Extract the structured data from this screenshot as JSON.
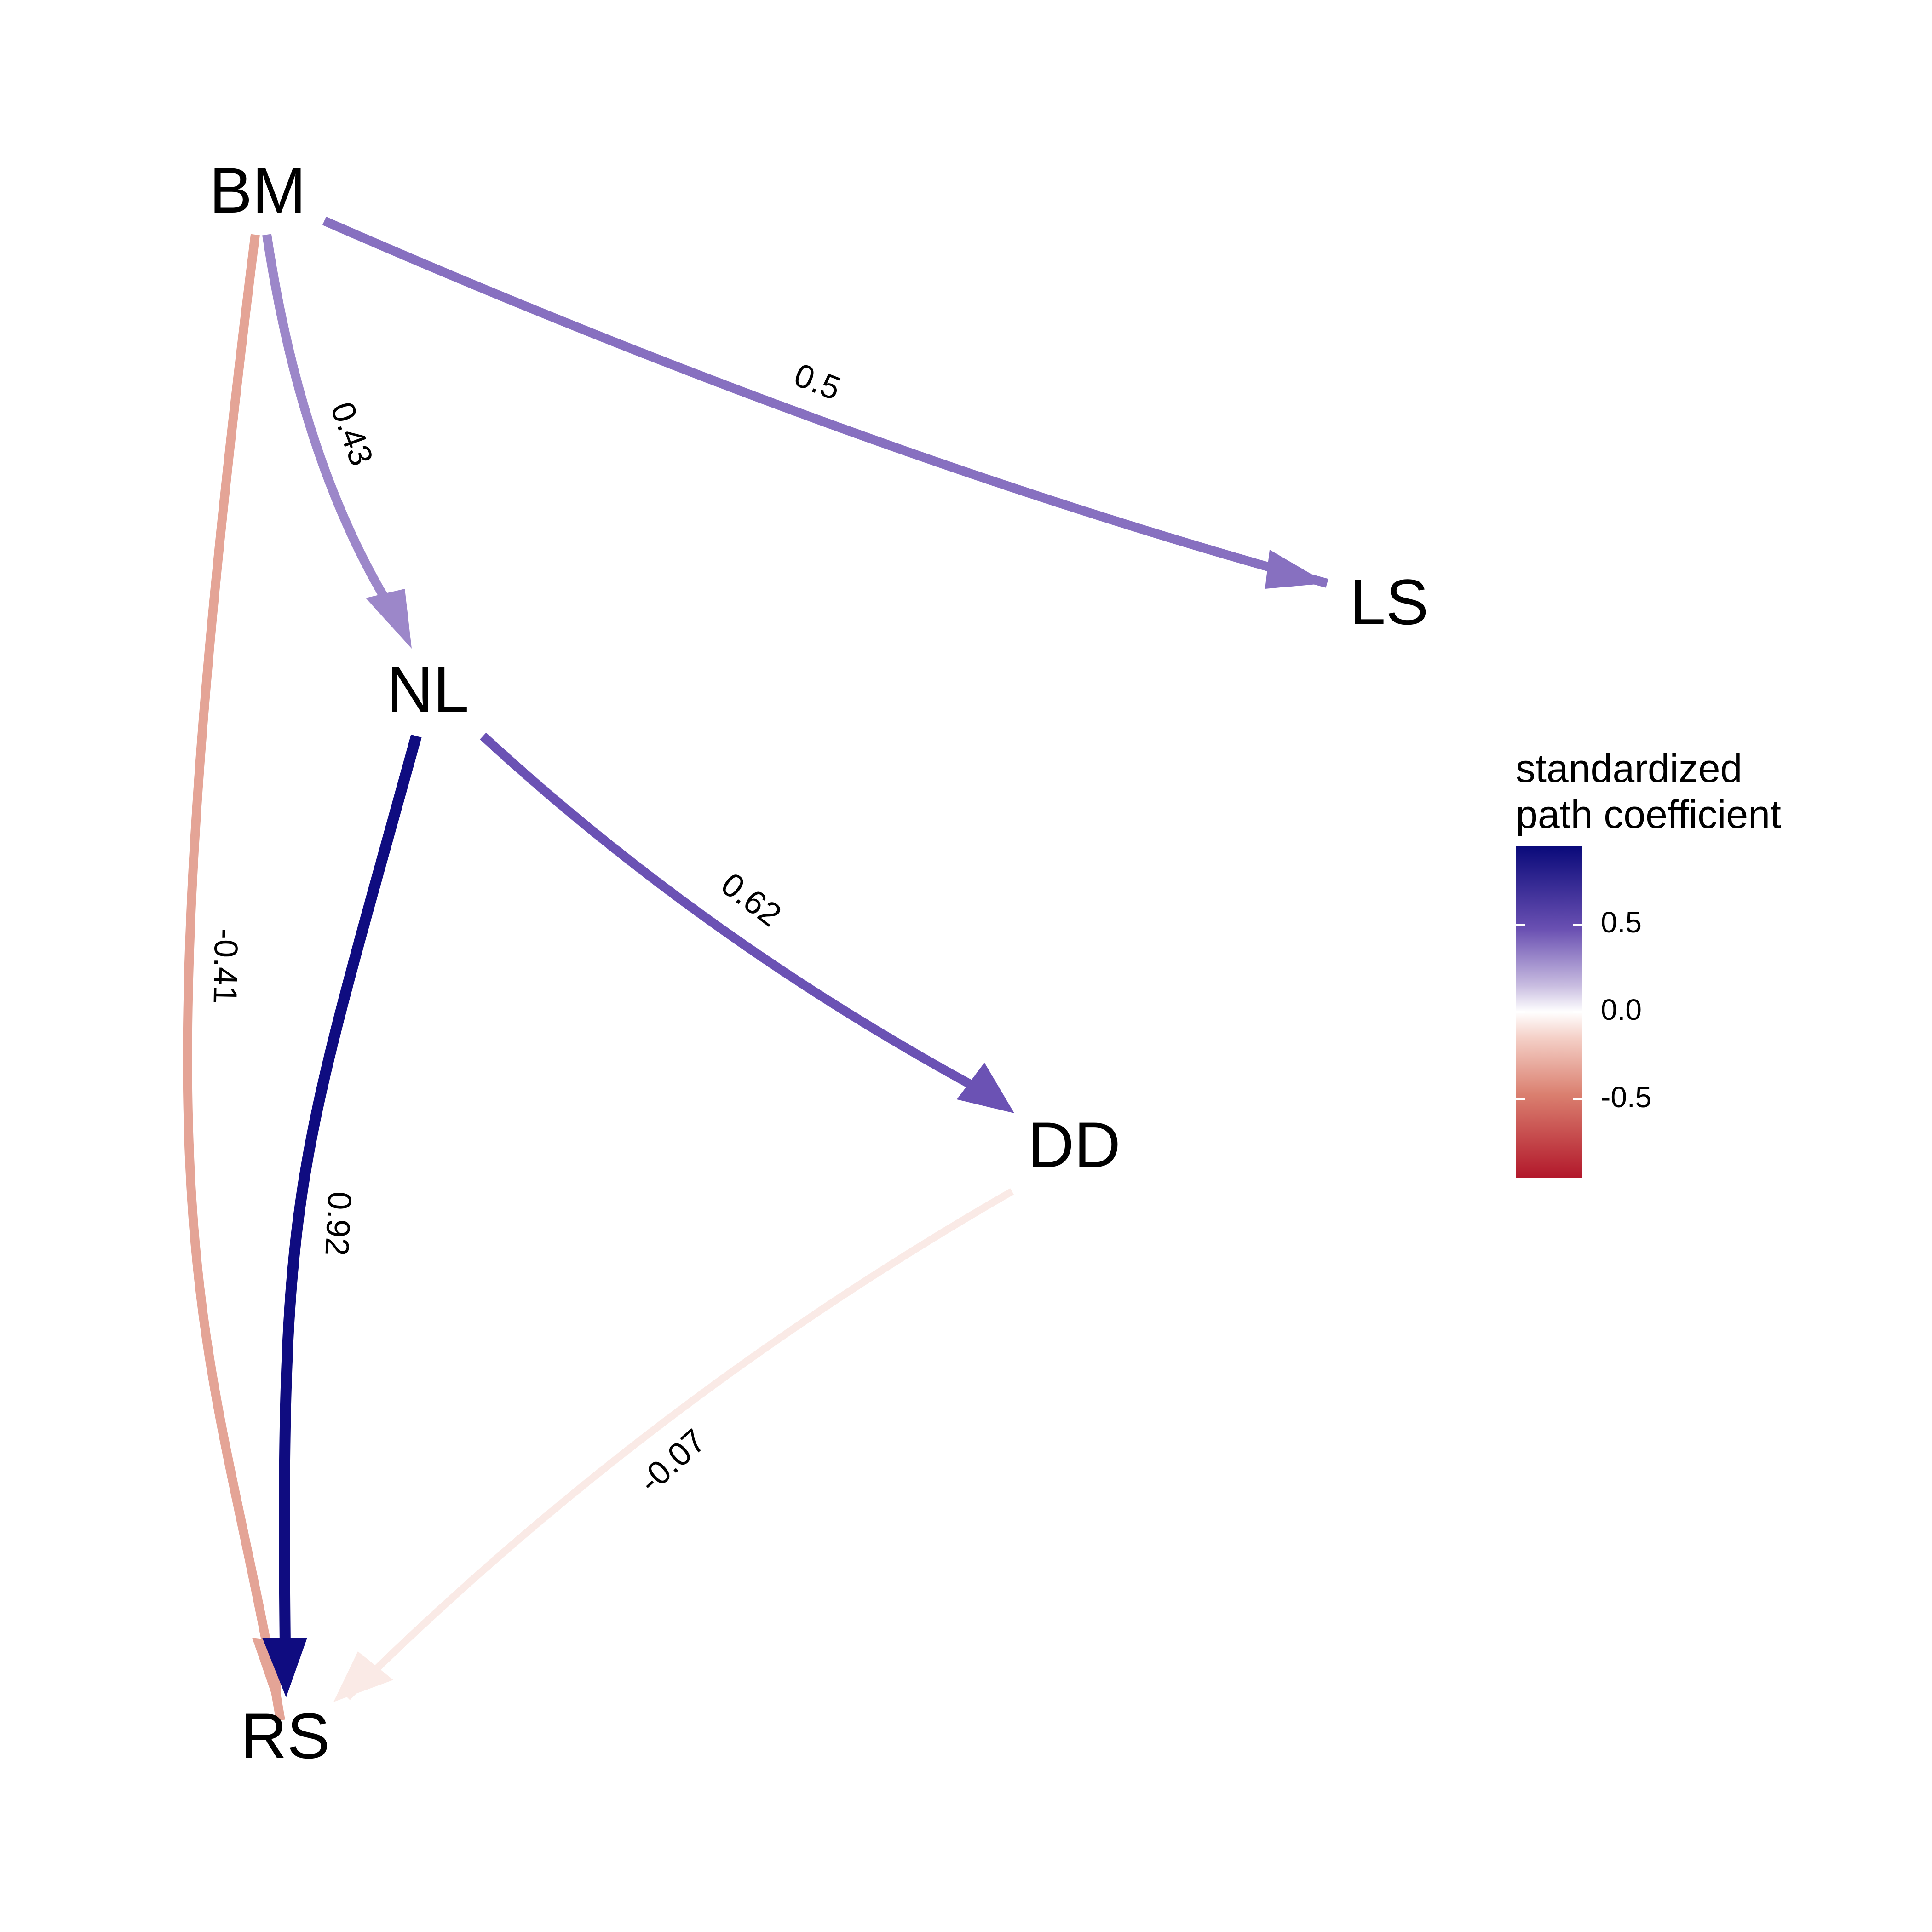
{
  "nodes": [
    {
      "id": "BM",
      "label": "BM"
    },
    {
      "id": "LS",
      "label": "LS"
    },
    {
      "id": "NL",
      "label": "NL"
    },
    {
      "id": "DD",
      "label": "DD"
    },
    {
      "id": "RS",
      "label": "RS"
    }
  ],
  "edges": [
    {
      "from": "BM",
      "to": "LS",
      "coefficient": 0.5,
      "label": "0.5",
      "color": "#8770C0"
    },
    {
      "from": "BM",
      "to": "NL",
      "coefficient": 0.43,
      "label": "0.43",
      "color": "#9C87C9"
    },
    {
      "from": "BM",
      "to": "RS",
      "coefficient": -0.41,
      "label": "-0.41",
      "color": "#E4A496"
    },
    {
      "from": "NL",
      "to": "DD",
      "coefficient": 0.62,
      "label": "0.62",
      "color": "#6B52B4"
    },
    {
      "from": "NL",
      "to": "RS",
      "coefficient": 0.92,
      "label": "0.92",
      "color": "#0F0C80"
    },
    {
      "from": "DD",
      "to": "RS",
      "coefficient": -0.07,
      "label": "-0.07",
      "color": "#FAEAE6"
    }
  ],
  "legend": {
    "title_line1": "standardized",
    "title_line2": "path coefficient",
    "ticks": [
      "0.5",
      "0.0",
      "-0.5"
    ],
    "range": [
      -0.94,
      0.94
    ],
    "colors": {
      "high": "#0A0A7A",
      "mid": "#FFFFFF",
      "low": "#B2182B"
    }
  }
}
